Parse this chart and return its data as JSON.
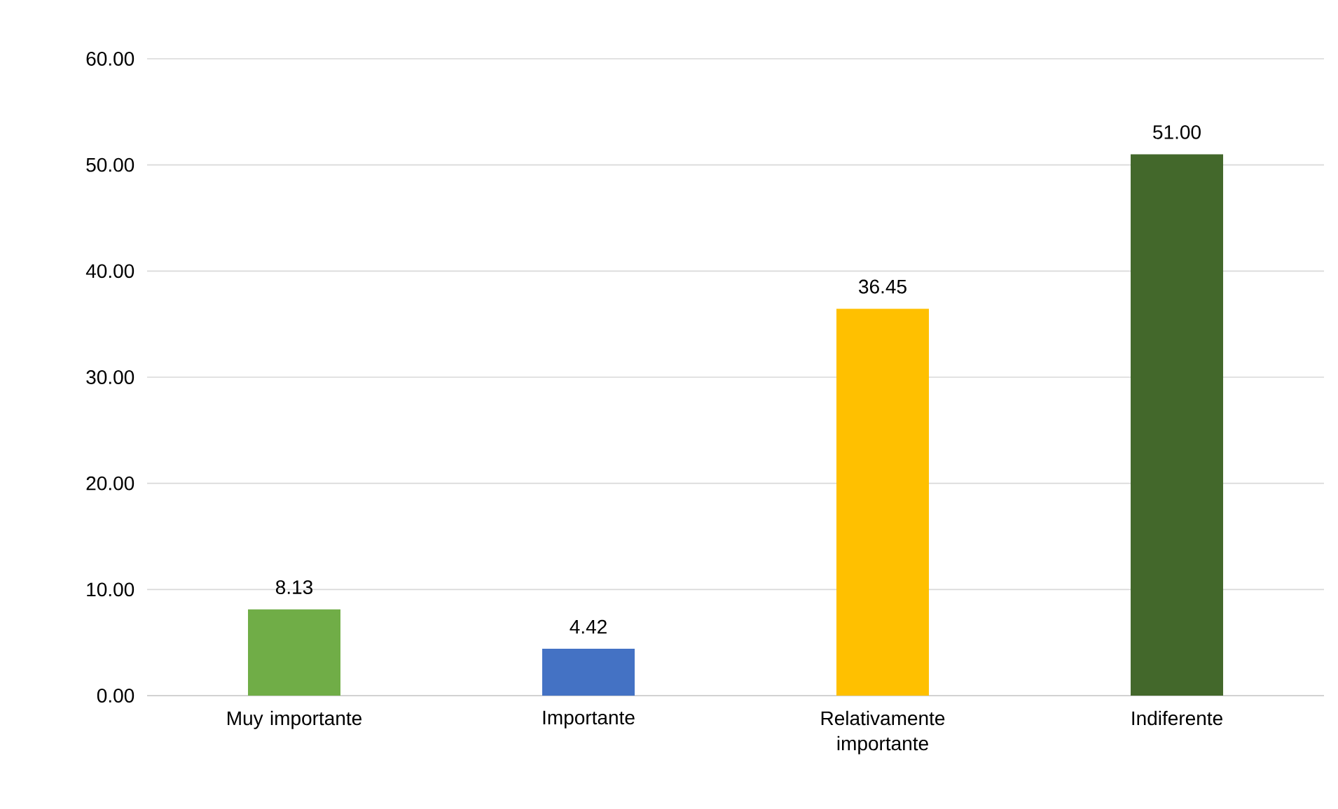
{
  "chart_data": {
    "type": "bar",
    "categories": [
      "Muy importante",
      "Importante",
      "Relativamente importante",
      "Indiferente"
    ],
    "values": [
      8.13,
      4.42,
      36.45,
      51.0
    ],
    "colors": [
      "#70ad47",
      "#4472c4",
      "#ffc000",
      "#43682b"
    ],
    "value_labels": [
      "8.13",
      "4.42",
      "36.45",
      "51.00"
    ],
    "ylim": [
      0,
      60
    ],
    "yticks": [
      {
        "value": 0,
        "label": "0.00"
      },
      {
        "value": 10,
        "label": "10.00"
      },
      {
        "value": 20,
        "label": "20.00"
      },
      {
        "value": 30,
        "label": "30.00"
      },
      {
        "value": 40,
        "label": "40.00"
      },
      {
        "value": 50,
        "label": "50.00"
      },
      {
        "value": 60,
        "label": "60.00"
      }
    ],
    "grid": "y"
  }
}
